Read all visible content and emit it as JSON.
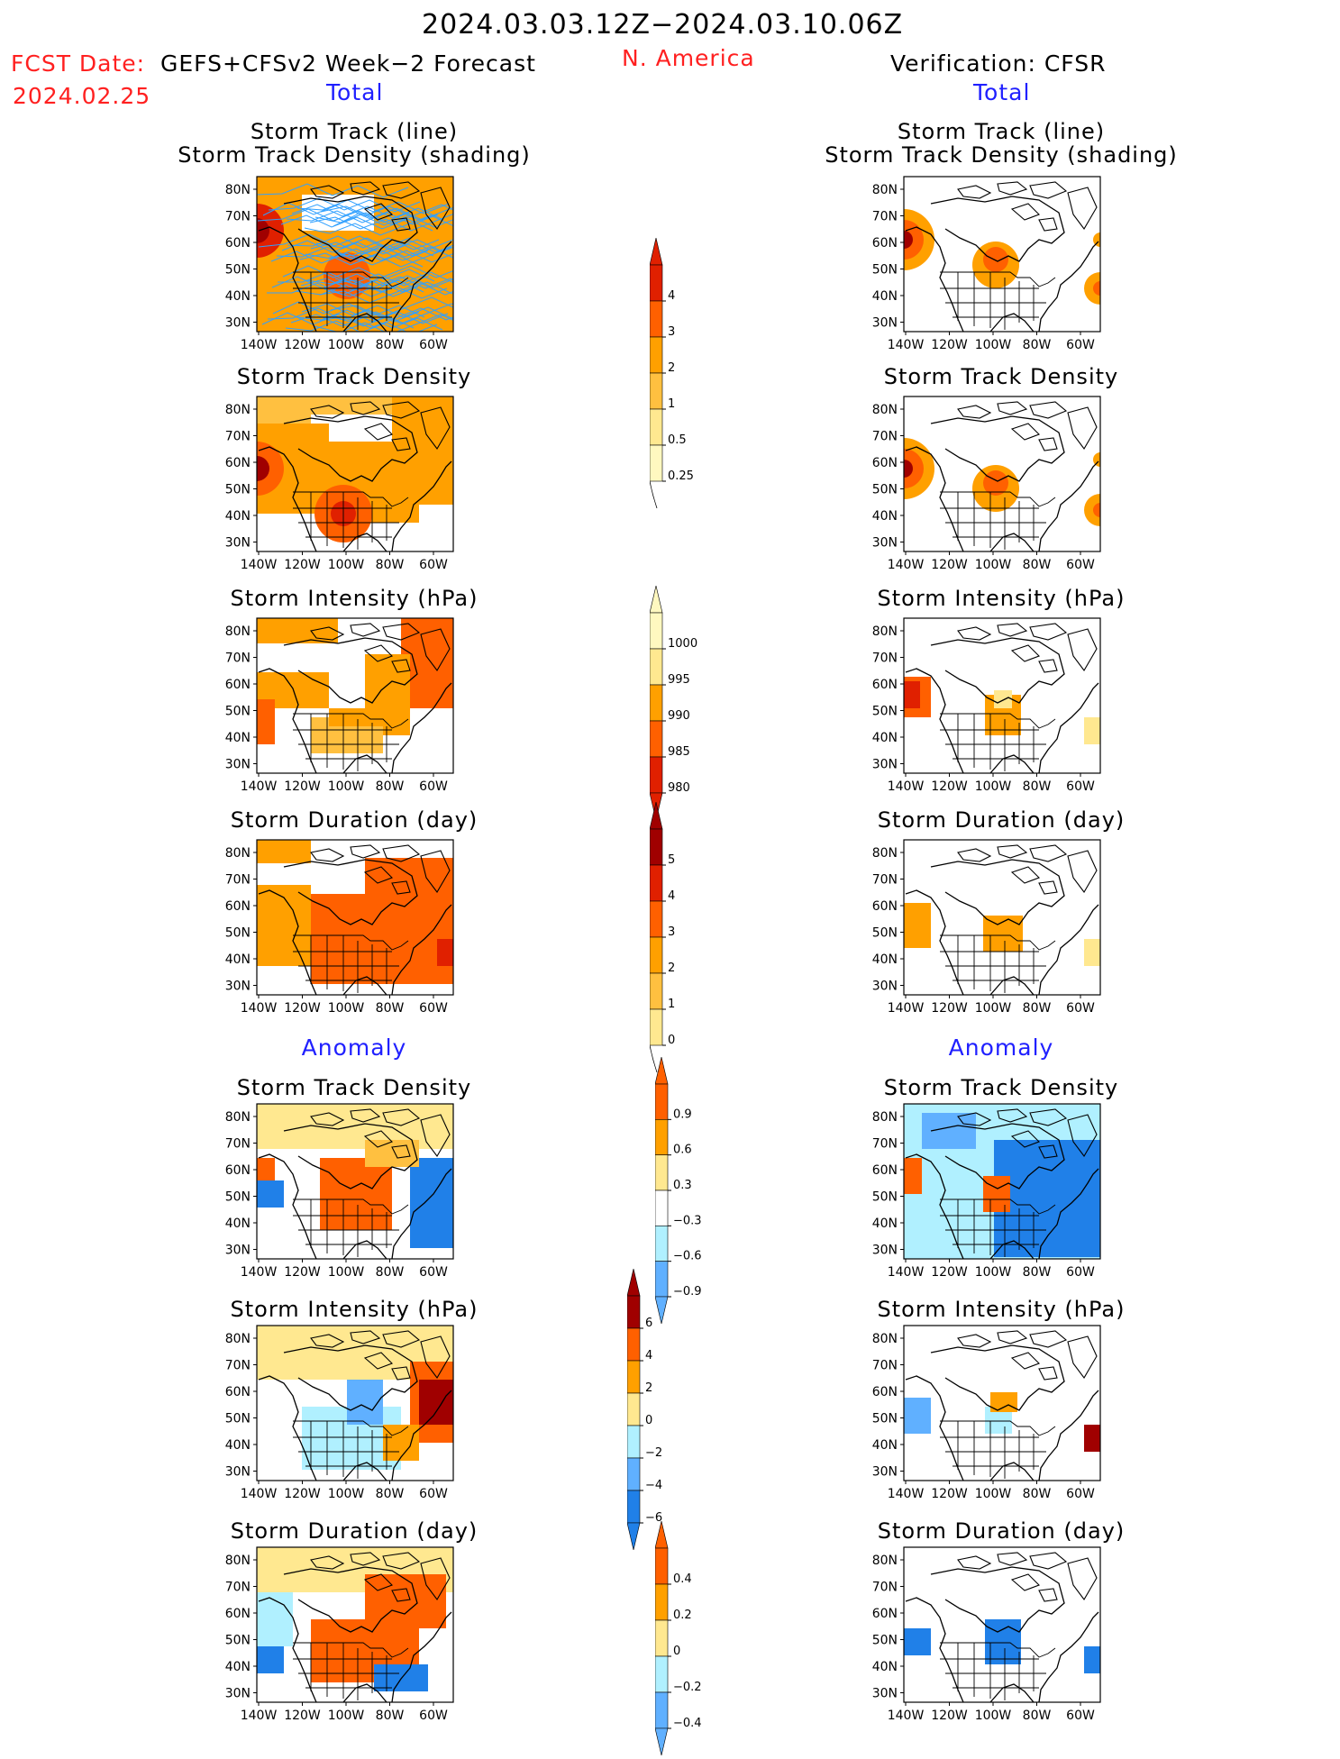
{
  "header": {
    "period": "2024.03.03.12Z−2024.03.10.06Z",
    "fcst_label": "FCST Date:",
    "fcst_source": "GEFS+CFSv2 Week−2 Forecast",
    "fcst_date": "2024.02.25",
    "region": "N. America",
    "verification": "Verification: CFSR",
    "left_total": "Total",
    "right_total": "Total",
    "left_anomaly": "Anomaly",
    "right_anomaly": "Anomaly"
  },
  "panel_titles": {
    "track_line": "Storm Track (line)",
    "track_shading": "Storm Track Density (shading)",
    "density": "Storm Track Density",
    "intensity": "Storm Intensity (hPa)",
    "duration": "Storm Duration (day)"
  },
  "axes": {
    "lat_ticks": [
      "80N",
      "70N",
      "60N",
      "50N",
      "40N",
      "30N"
    ],
    "lon_ticks": [
      "140W",
      "120W",
      "100W",
      "80W",
      "60W"
    ]
  },
  "colorbars": {
    "density_total": [
      "4",
      "3",
      "2",
      "1",
      "0.5",
      "0.25"
    ],
    "intensity_total": [
      "1000",
      "995",
      "990",
      "985",
      "980"
    ],
    "duration_total": [
      "5",
      "4",
      "3",
      "2",
      "1",
      "0"
    ],
    "density_anom": [
      "0.9",
      "0.6",
      "0.3",
      "−0.3",
      "−0.6",
      "−0.9"
    ],
    "intensity_anom": [
      "6",
      "4",
      "2",
      "0",
      "−2",
      "−4",
      "−6"
    ],
    "duration_anom": [
      "0.4",
      "0.2",
      "0",
      "−0.2",
      "−0.4"
    ]
  },
  "colors": {
    "orange": "#ffa000",
    "orange_red": "#ff6000",
    "red": "#e02000",
    "dark_red": "#a00000",
    "light_orange": "#ffc040",
    "pale_yellow": "#ffe890",
    "light_blue": "#b0f0ff",
    "mid_blue": "#60b0ff",
    "blue": "#2080e8",
    "dark_blue": "#1050c0",
    "track_line": "#30a0ff"
  }
}
